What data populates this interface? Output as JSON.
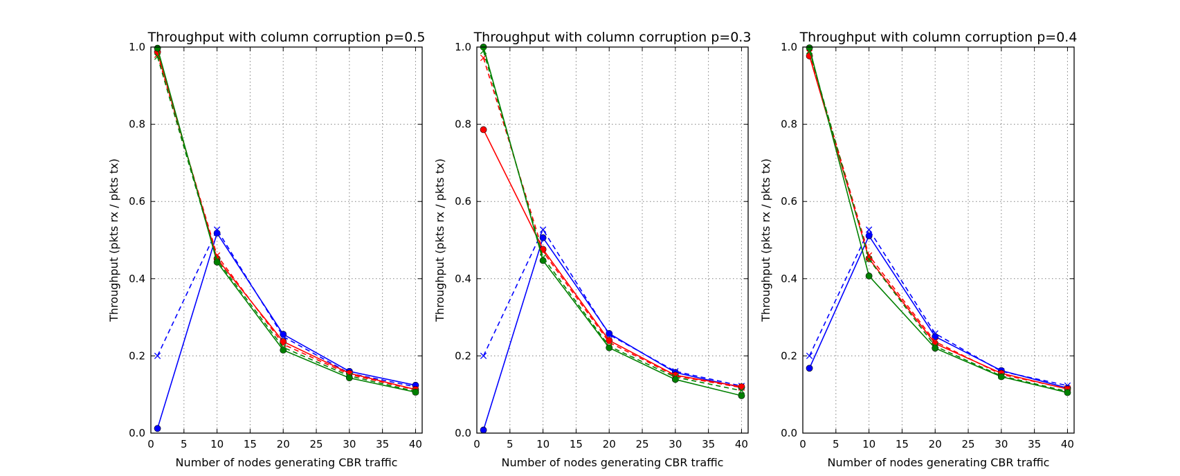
{
  "chart_data": [
    {
      "type": "line",
      "title": "Throughput with column corruption p=0.5",
      "xlabel": "Number of nodes generating CBR traffic",
      "ylabel": "Throughput (pkts rx / pkts tx)",
      "xlim": [
        0,
        41
      ],
      "ylim": [
        0.0,
        1.0
      ],
      "xticks": [
        "0",
        "5",
        "10",
        "15",
        "20",
        "25",
        "30",
        "35",
        "40"
      ],
      "yticks": [
        "0.0",
        "0.2",
        "0.4",
        "0.6",
        "0.8",
        "1.0"
      ],
      "grid": true,
      "x": [
        1,
        10,
        20,
        30,
        40
      ],
      "series": [
        {
          "color": "#0000ff",
          "style": "solid",
          "marker": "circle",
          "values": [
            0.012,
            0.518,
            0.256,
            0.16,
            0.124
          ]
        },
        {
          "color": "#0000ff",
          "style": "dashed",
          "marker": "x",
          "values": [
            0.2,
            0.527,
            0.25,
            0.155,
            0.12
          ]
        },
        {
          "color": "#ff0000",
          "style": "solid",
          "marker": "circle",
          "values": [
            0.987,
            0.452,
            0.237,
            0.155,
            0.113
          ]
        },
        {
          "color": "#ff0000",
          "style": "dashed",
          "marker": "x",
          "values": [
            0.98,
            0.46,
            0.23,
            0.152,
            0.112
          ]
        },
        {
          "color": "#008000",
          "style": "solid",
          "marker": "circle",
          "values": [
            0.997,
            0.443,
            0.215,
            0.143,
            0.106
          ]
        },
        {
          "color": "#008000",
          "style": "dashed",
          "marker": "x",
          "values": [
            0.975,
            0.448,
            0.222,
            0.148,
            0.108
          ]
        }
      ]
    },
    {
      "type": "line",
      "title": "Throughput with column corruption p=0.3",
      "xlabel": "Number of nodes generating CBR traffic",
      "ylabel": "Throughput (pkts rx / pkts tx)",
      "xlim": [
        0,
        41
      ],
      "ylim": [
        0.0,
        1.0
      ],
      "xticks": [
        "0",
        "5",
        "10",
        "15",
        "20",
        "25",
        "30",
        "35",
        "40"
      ],
      "yticks": [
        "0.0",
        "0.2",
        "0.4",
        "0.6",
        "0.8",
        "1.0"
      ],
      "grid": true,
      "x": [
        1,
        10,
        20,
        30,
        40
      ],
      "series": [
        {
          "color": "#0000ff",
          "style": "solid",
          "marker": "circle",
          "values": [
            0.008,
            0.506,
            0.258,
            0.157,
            0.118
          ]
        },
        {
          "color": "#0000ff",
          "style": "dashed",
          "marker": "x",
          "values": [
            0.2,
            0.527,
            0.255,
            0.16,
            0.122
          ]
        },
        {
          "color": "#ff0000",
          "style": "solid",
          "marker": "circle",
          "values": [
            0.786,
            0.476,
            0.24,
            0.15,
            0.12
          ]
        },
        {
          "color": "#ff0000",
          "style": "dashed",
          "marker": "x",
          "values": [
            0.972,
            0.47,
            0.235,
            0.148,
            0.118
          ]
        },
        {
          "color": "#008000",
          "style": "solid",
          "marker": "circle",
          "values": [
            1.0,
            0.447,
            0.221,
            0.139,
            0.097
          ]
        },
        {
          "color": "#008000",
          "style": "dashed",
          "marker": "x",
          "values": [
            0.99,
            0.455,
            0.225,
            0.145,
            0.11
          ]
        }
      ]
    },
    {
      "type": "line",
      "title": "Throughput with column corruption p=0.4",
      "xlabel": "Number of nodes generating CBR traffic",
      "ylabel": "Throughput (pkts rx / pkts tx)",
      "xlim": [
        0,
        41
      ],
      "ylim": [
        0.0,
        1.0
      ],
      "xticks": [
        "0",
        "5",
        "10",
        "15",
        "20",
        "25",
        "30",
        "35",
        "40"
      ],
      "yticks": [
        "0.0",
        "0.2",
        "0.4",
        "0.6",
        "0.8",
        "1.0"
      ],
      "grid": true,
      "x": [
        1,
        10,
        20,
        30,
        40
      ],
      "series": [
        {
          "color": "#0000ff",
          "style": "solid",
          "marker": "circle",
          "values": [
            0.168,
            0.511,
            0.25,
            0.162,
            0.117
          ]
        },
        {
          "color": "#0000ff",
          "style": "dashed",
          "marker": "x",
          "values": [
            0.2,
            0.527,
            0.258,
            0.16,
            0.123
          ]
        },
        {
          "color": "#ff0000",
          "style": "solid",
          "marker": "circle",
          "values": [
            0.977,
            0.452,
            0.232,
            0.155,
            0.114
          ]
        },
        {
          "color": "#ff0000",
          "style": "dashed",
          "marker": "x",
          "values": [
            0.985,
            0.46,
            0.237,
            0.152,
            0.115
          ]
        },
        {
          "color": "#008000",
          "style": "solid",
          "marker": "circle",
          "values": [
            0.998,
            0.407,
            0.22,
            0.146,
            0.105
          ]
        },
        {
          "color": "#008000",
          "style": "dashed",
          "marker": "x",
          "values": [
            0.99,
            0.45,
            0.225,
            0.148,
            0.108
          ]
        }
      ]
    }
  ]
}
